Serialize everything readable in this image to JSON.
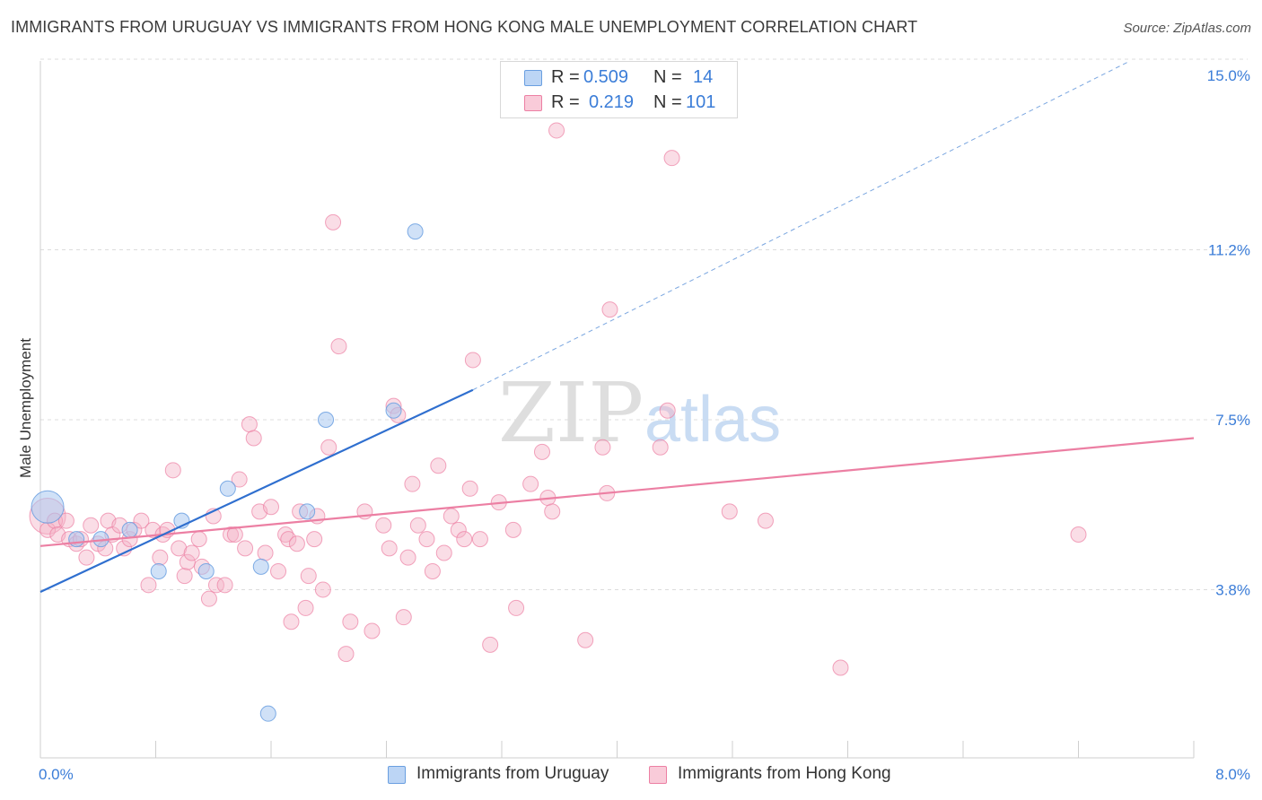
{
  "title": "IMMIGRANTS FROM URUGUAY VS IMMIGRANTS FROM HONG KONG MALE UNEMPLOYMENT CORRELATION CHART",
  "source": "Source: ZipAtlas.com",
  "watermark": {
    "zip": "ZIP",
    "atlas": "atlas"
  },
  "legend": {
    "rows": [
      {
        "r_label": "R =",
        "r_value": "0.509",
        "n_label": "N =",
        "n_value": "14",
        "color": "#a9c8f0"
      },
      {
        "r_label": "R =",
        "r_value": "0.219",
        "n_label": "N =",
        "n_value": "101",
        "color": "#f5b3c7"
      }
    ]
  },
  "bottom_legend": {
    "uruguay": "Immigrants from Uruguay",
    "hongkong": "Immigrants from Hong Kong"
  },
  "chart_data": {
    "type": "scatter",
    "title": "IMMIGRANTS FROM URUGUAY VS IMMIGRANTS FROM HONG KONG MALE UNEMPLOYMENT CORRELATION CHART",
    "xlabel": "",
    "ylabel": "Male Unemployment",
    "xlim": [
      0,
      8
    ],
    "ylim": [
      0,
      15.5
    ],
    "x_tick_labels": [
      "0.0%",
      "8.0%"
    ],
    "y_ticks": [
      3.8,
      7.5,
      11.2,
      15.0
    ],
    "y_tick_labels": [
      "3.8%",
      "7.5%",
      "11.2%",
      "15.0%"
    ],
    "grid": true,
    "legend_position": "top-center",
    "series": [
      {
        "name": "Immigrants from Uruguay",
        "color": "#6a9fe0",
        "fill": "#a9c8f0",
        "points": [
          {
            "x": 0.05,
            "y": 5.6,
            "big": true
          },
          {
            "x": 0.25,
            "y": 4.9
          },
          {
            "x": 0.42,
            "y": 4.9
          },
          {
            "x": 0.62,
            "y": 5.1
          },
          {
            "x": 0.82,
            "y": 4.2
          },
          {
            "x": 0.98,
            "y": 5.3
          },
          {
            "x": 1.15,
            "y": 4.2
          },
          {
            "x": 1.3,
            "y": 6.0
          },
          {
            "x": 1.53,
            "y": 4.3
          },
          {
            "x": 1.85,
            "y": 5.5
          },
          {
            "x": 1.98,
            "y": 7.5
          },
          {
            "x": 2.45,
            "y": 7.7
          },
          {
            "x": 2.6,
            "y": 11.6
          },
          {
            "x": 1.58,
            "y": 1.1
          }
        ],
        "trend": {
          "x0": 0,
          "y0": 3.75,
          "x1": 3.0,
          "y1": 8.15,
          "dash_x1": 7.55,
          "dash_y1": 15.3
        }
      },
      {
        "name": "Immigrants from Hong Kong",
        "color": "#ec7fa3",
        "fill": "#f5b3c7",
        "points": [
          {
            "x": 0.05,
            "y": 5.4,
            "big": true
          },
          {
            "x": 0.05,
            "y": 5.1
          },
          {
            "x": 0.1,
            "y": 5.3
          },
          {
            "x": 0.12,
            "y": 5.0
          },
          {
            "x": 0.18,
            "y": 5.3
          },
          {
            "x": 0.2,
            "y": 4.9
          },
          {
            "x": 0.25,
            "y": 4.8
          },
          {
            "x": 0.28,
            "y": 4.9
          },
          {
            "x": 0.32,
            "y": 4.5
          },
          {
            "x": 0.35,
            "y": 5.2
          },
          {
            "x": 0.4,
            "y": 4.8
          },
          {
            "x": 0.45,
            "y": 4.7
          },
          {
            "x": 0.47,
            "y": 5.3
          },
          {
            "x": 0.5,
            "y": 5.0
          },
          {
            "x": 0.55,
            "y": 5.2
          },
          {
            "x": 0.58,
            "y": 4.7
          },
          {
            "x": 0.62,
            "y": 4.9
          },
          {
            "x": 0.65,
            "y": 5.1
          },
          {
            "x": 0.7,
            "y": 5.3
          },
          {
            "x": 0.75,
            "y": 3.9
          },
          {
            "x": 0.78,
            "y": 5.1
          },
          {
            "x": 0.83,
            "y": 4.5
          },
          {
            "x": 0.85,
            "y": 5.0
          },
          {
            "x": 0.88,
            "y": 5.1
          },
          {
            "x": 0.92,
            "y": 6.4
          },
          {
            "x": 0.96,
            "y": 4.7
          },
          {
            "x": 1.0,
            "y": 4.1
          },
          {
            "x": 1.02,
            "y": 4.4
          },
          {
            "x": 1.05,
            "y": 4.6
          },
          {
            "x": 1.1,
            "y": 4.9
          },
          {
            "x": 1.12,
            "y": 4.3
          },
          {
            "x": 1.17,
            "y": 3.6
          },
          {
            "x": 1.2,
            "y": 5.4
          },
          {
            "x": 1.22,
            "y": 3.9
          },
          {
            "x": 1.28,
            "y": 3.9
          },
          {
            "x": 1.32,
            "y": 5.0
          },
          {
            "x": 1.35,
            "y": 5.0
          },
          {
            "x": 1.38,
            "y": 6.2
          },
          {
            "x": 1.42,
            "y": 4.7
          },
          {
            "x": 1.45,
            "y": 7.4
          },
          {
            "x": 1.48,
            "y": 7.1
          },
          {
            "x": 1.52,
            "y": 5.5
          },
          {
            "x": 1.56,
            "y": 4.6
          },
          {
            "x": 1.6,
            "y": 5.6
          },
          {
            "x": 1.65,
            "y": 4.2
          },
          {
            "x": 1.7,
            "y": 5.0
          },
          {
            "x": 1.72,
            "y": 4.9
          },
          {
            "x": 1.74,
            "y": 3.1
          },
          {
            "x": 1.78,
            "y": 4.8
          },
          {
            "x": 1.8,
            "y": 5.5
          },
          {
            "x": 1.84,
            "y": 3.4
          },
          {
            "x": 1.86,
            "y": 4.1
          },
          {
            "x": 1.9,
            "y": 4.9
          },
          {
            "x": 1.92,
            "y": 5.4
          },
          {
            "x": 1.96,
            "y": 3.8
          },
          {
            "x": 2.0,
            "y": 6.9
          },
          {
            "x": 2.03,
            "y": 11.8
          },
          {
            "x": 2.07,
            "y": 9.1
          },
          {
            "x": 2.12,
            "y": 2.4
          },
          {
            "x": 2.15,
            "y": 3.1
          },
          {
            "x": 2.25,
            "y": 5.5
          },
          {
            "x": 2.3,
            "y": 2.9
          },
          {
            "x": 2.38,
            "y": 5.2
          },
          {
            "x": 2.42,
            "y": 4.7
          },
          {
            "x": 2.45,
            "y": 7.8
          },
          {
            "x": 2.48,
            "y": 7.6
          },
          {
            "x": 2.52,
            "y": 3.2
          },
          {
            "x": 2.55,
            "y": 4.5
          },
          {
            "x": 2.58,
            "y": 6.1
          },
          {
            "x": 2.62,
            "y": 5.2
          },
          {
            "x": 2.68,
            "y": 4.9
          },
          {
            "x": 2.72,
            "y": 4.2
          },
          {
            "x": 2.76,
            "y": 6.5
          },
          {
            "x": 2.8,
            "y": 4.6
          },
          {
            "x": 2.85,
            "y": 5.4
          },
          {
            "x": 2.9,
            "y": 5.1
          },
          {
            "x": 2.94,
            "y": 4.9
          },
          {
            "x": 2.98,
            "y": 6.0
          },
          {
            "x": 3.0,
            "y": 8.8
          },
          {
            "x": 3.05,
            "y": 4.9
          },
          {
            "x": 3.12,
            "y": 2.6
          },
          {
            "x": 3.18,
            "y": 5.7
          },
          {
            "x": 3.28,
            "y": 5.1
          },
          {
            "x": 3.3,
            "y": 3.4
          },
          {
            "x": 3.4,
            "y": 6.1
          },
          {
            "x": 3.48,
            "y": 6.8
          },
          {
            "x": 3.52,
            "y": 5.8
          },
          {
            "x": 3.55,
            "y": 5.5
          },
          {
            "x": 3.58,
            "y": 13.8
          },
          {
            "x": 3.78,
            "y": 2.7
          },
          {
            "x": 3.9,
            "y": 6.9
          },
          {
            "x": 3.93,
            "y": 5.9
          },
          {
            "x": 3.95,
            "y": 9.9
          },
          {
            "x": 4.3,
            "y": 6.9
          },
          {
            "x": 4.35,
            "y": 7.7
          },
          {
            "x": 4.38,
            "y": 13.2
          },
          {
            "x": 4.78,
            "y": 5.5
          },
          {
            "x": 5.03,
            "y": 5.3
          },
          {
            "x": 5.55,
            "y": 2.1
          },
          {
            "x": 7.2,
            "y": 5.0
          }
        ],
        "trend": {
          "x0": 0,
          "y0": 4.75,
          "x1": 8.0,
          "y1": 7.1
        }
      }
    ]
  }
}
